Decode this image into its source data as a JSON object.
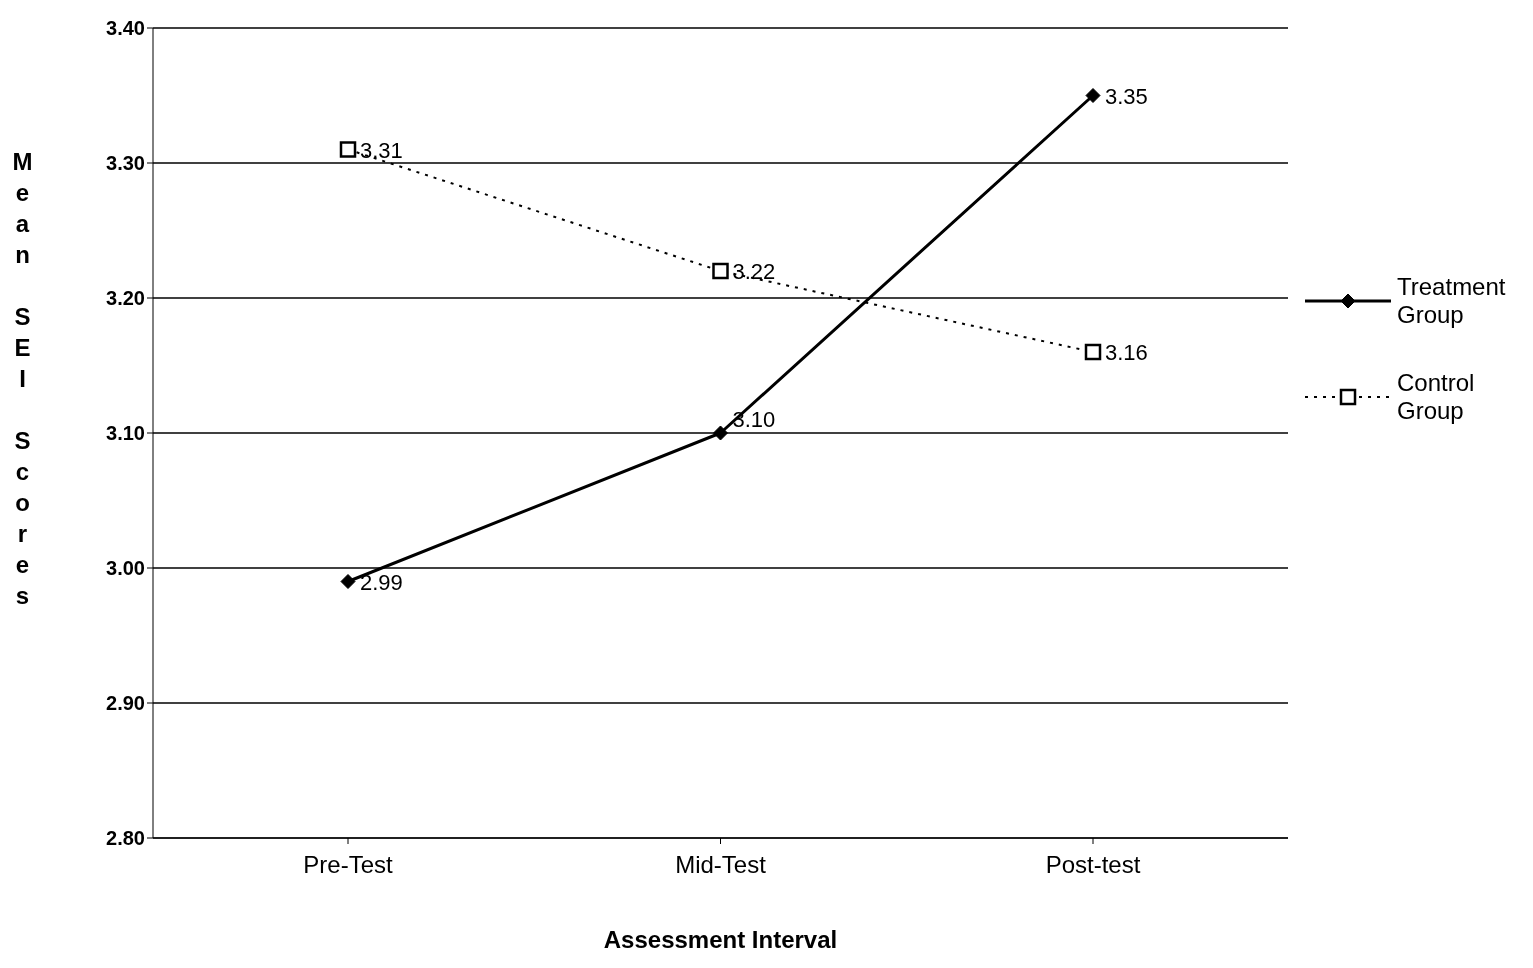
{
  "chart_data": {
    "type": "line",
    "xlabel": "Assessment Interval",
    "ylabel": "Mean SEI Scores",
    "categories": [
      "Pre-Test",
      "Mid-Test",
      "Post-test"
    ],
    "series": [
      {
        "name": "Treatment Group",
        "color": "#000000",
        "values": [
          2.99,
          3.1,
          3.35
        ],
        "value_labels": [
          "2.99",
          "3.10",
          "3.35"
        ],
        "marker": "diamond",
        "line_style": "solid"
      },
      {
        "name": "Control Group",
        "color": "#000000",
        "values": [
          3.31,
          3.22,
          3.16
        ],
        "value_labels": [
          "3.31",
          "3.22",
          "3.16"
        ],
        "marker": "square",
        "line_style": "dotted"
      }
    ],
    "ylim": [
      2.8,
      3.4
    ],
    "yticks": [
      {
        "value": 2.8,
        "label": "2.80"
      },
      {
        "value": 2.9,
        "label": "2.90"
      },
      {
        "value": 3.0,
        "label": "3.00"
      },
      {
        "value": 3.1,
        "label": "3.10"
      },
      {
        "value": 3.2,
        "label": "3.20"
      },
      {
        "value": 3.3,
        "label": "3.30"
      },
      {
        "value": 3.4,
        "label": "3.40"
      }
    ],
    "grid": "y",
    "legend": "right"
  }
}
